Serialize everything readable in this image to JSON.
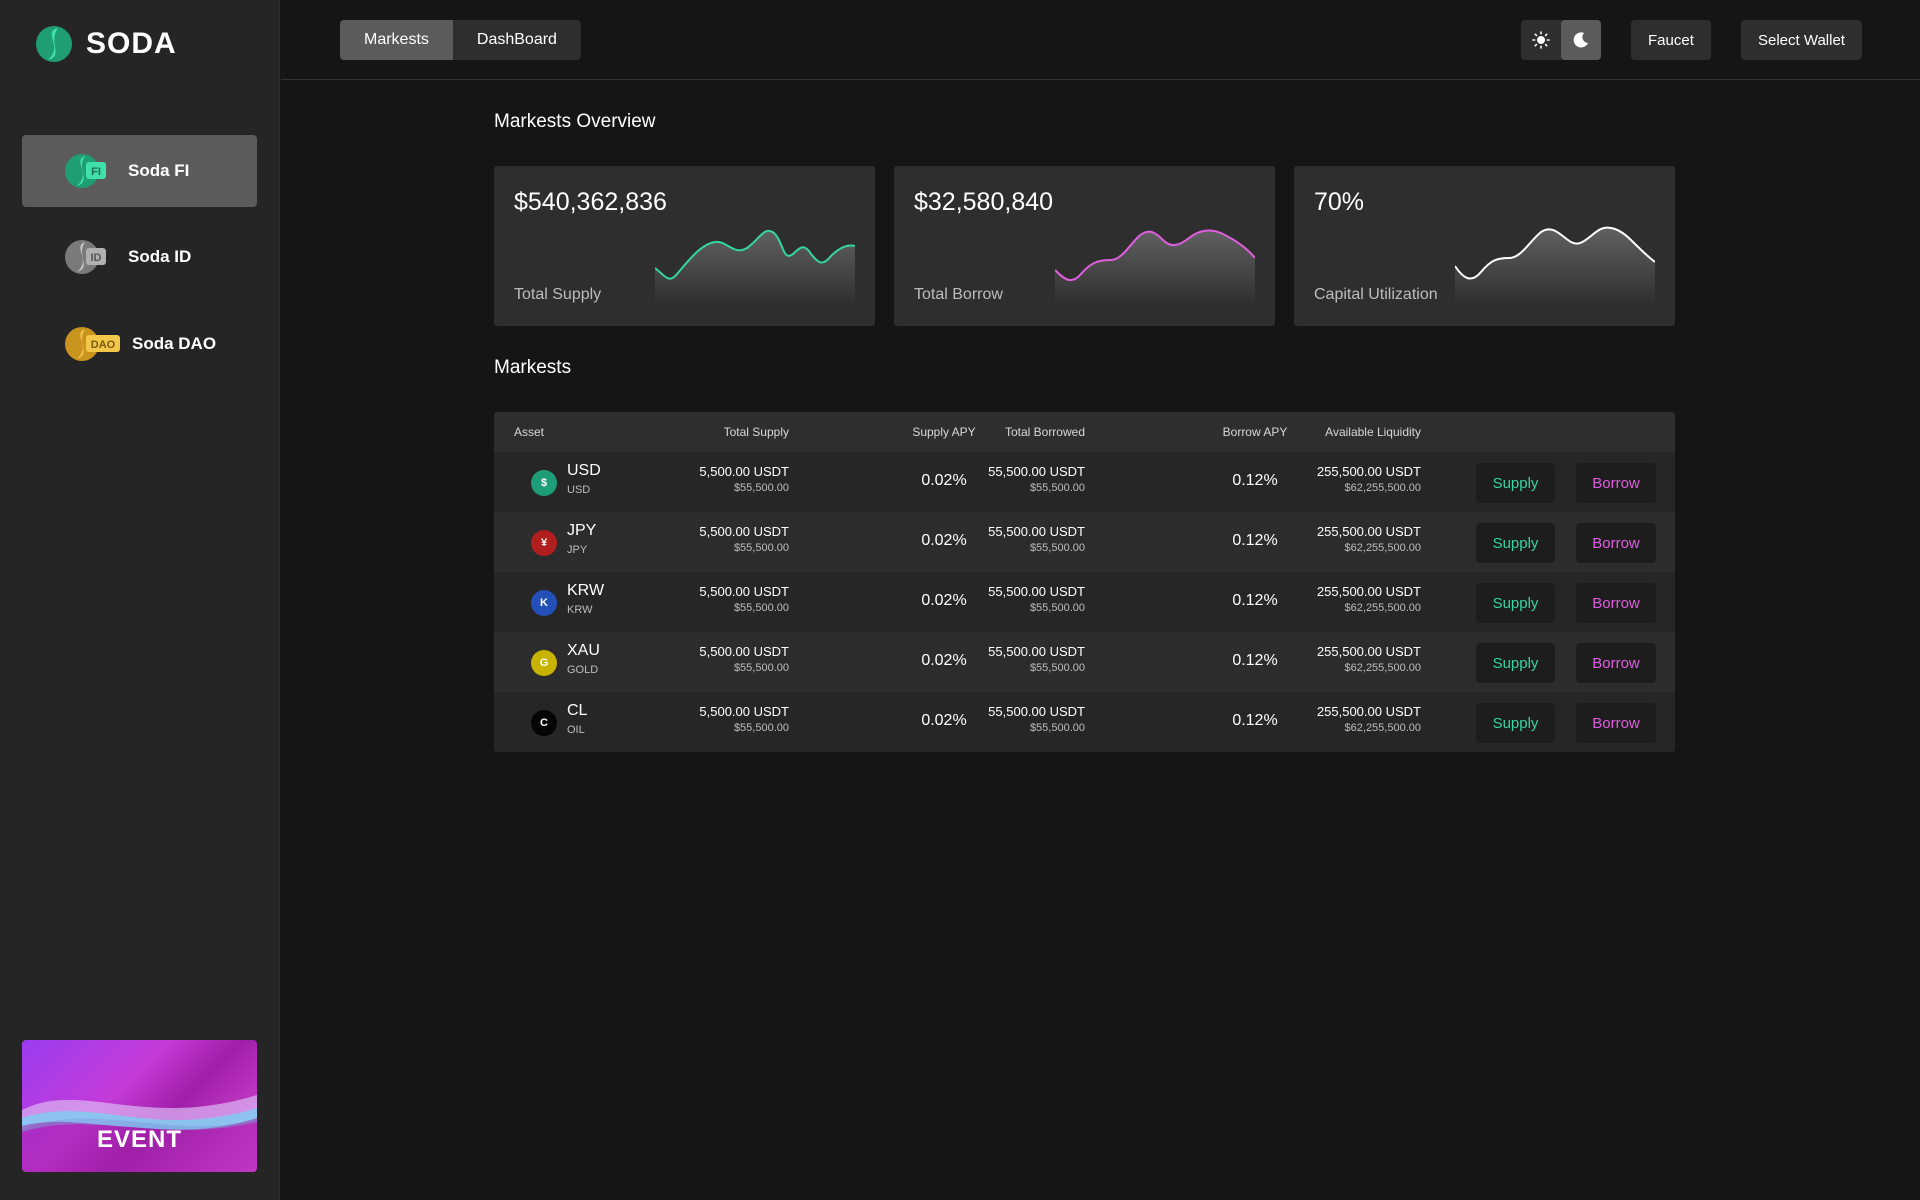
{
  "brand": {
    "name": "SODA"
  },
  "sidebar": {
    "items": [
      {
        "label": "Soda FI",
        "badge": "FI",
        "active": true,
        "color": "#3ad6a0"
      },
      {
        "label": "Soda ID",
        "badge": "ID",
        "active": false,
        "color": "#a8a8a8"
      },
      {
        "label": "Soda DAO",
        "badge": "DAO",
        "active": false,
        "color": "#f0c040"
      }
    ],
    "event_label": "EVENT"
  },
  "header": {
    "tabs": [
      {
        "label": "Markests",
        "active": true
      },
      {
        "label": "DashBoard",
        "active": false
      }
    ],
    "theme": {
      "light_icon": "sun-icon",
      "dark_icon": "moon-icon",
      "active": "dark"
    },
    "faucet_label": "Faucet",
    "wallet_label": "Select Wallet"
  },
  "overview": {
    "title": "Markests Overview",
    "cards": [
      {
        "value": "$540,362,836",
        "label": "Total Supply",
        "color": "#35d6a2"
      },
      {
        "value": "$32,580,840",
        "label": "Total Borrow",
        "color": "#e05ee0"
      },
      {
        "value": "70%",
        "label": "Capital Utilization",
        "color": "#ffffff"
      }
    ]
  },
  "markets": {
    "title": "Markests",
    "columns": [
      "Asset",
      "Total Supply",
      "Supply APY",
      "Total Borrowed",
      "Borrow APY",
      "Available Liquidity"
    ],
    "supply_label": "Supply",
    "borrow_label": "Borrow",
    "rows": [
      {
        "symbol": "USD",
        "name": "USD",
        "glyph": "$",
        "color": "#1e9e78",
        "supply": "5,500.00 USDT",
        "supply_usd": "$55,500.00",
        "supply_apy": "0.02%",
        "borrowed": "55,500.00 USDT",
        "borrowed_usd": "$55,500.00",
        "borrow_apy": "0.12%",
        "liquidity": "255,500.00 USDT",
        "liquidity_usd": "$62,255,500.00"
      },
      {
        "symbol": "JPY",
        "name": "JPY",
        "glyph": "¥",
        "color": "#b01e1e",
        "supply": "5,500.00 USDT",
        "supply_usd": "$55,500.00",
        "supply_apy": "0.02%",
        "borrowed": "55,500.00 USDT",
        "borrowed_usd": "$55,500.00",
        "borrow_apy": "0.12%",
        "liquidity": "255,500.00 USDT",
        "liquidity_usd": "$62,255,500.00"
      },
      {
        "symbol": "KRW",
        "name": "KRW",
        "glyph": "K",
        "color": "#2250b8",
        "supply": "5,500.00 USDT",
        "supply_usd": "$55,500.00",
        "supply_apy": "0.02%",
        "borrowed": "55,500.00 USDT",
        "borrowed_usd": "$55,500.00",
        "borrow_apy": "0.12%",
        "liquidity": "255,500.00 USDT",
        "liquidity_usd": "$62,255,500.00"
      },
      {
        "symbol": "XAU",
        "name": "GOLD",
        "glyph": "G",
        "color": "#c8b400",
        "supply": "5,500.00 USDT",
        "supply_usd": "$55,500.00",
        "supply_apy": "0.02%",
        "borrowed": "55,500.00 USDT",
        "borrowed_usd": "$55,500.00",
        "borrow_apy": "0.12%",
        "liquidity": "255,500.00 USDT",
        "liquidity_usd": "$62,255,500.00"
      },
      {
        "symbol": "CL",
        "name": "OIL",
        "glyph": "C",
        "color": "#050505",
        "supply": "5,500.00 USDT",
        "supply_usd": "$55,500.00",
        "supply_apy": "0.02%",
        "borrowed": "55,500.00 USDT",
        "borrowed_usd": "$55,500.00",
        "borrow_apy": "0.12%",
        "liquidity": "255,500.00 USDT",
        "liquidity_usd": "$62,255,500.00"
      }
    ]
  }
}
